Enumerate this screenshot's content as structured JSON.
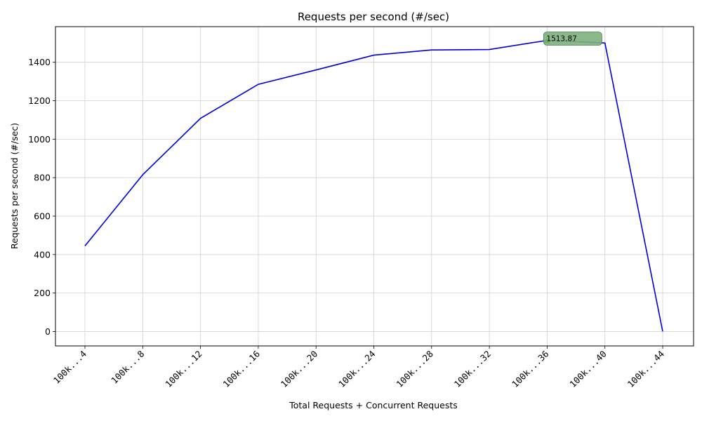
{
  "chart_data": {
    "type": "line",
    "title": "Requests per second (#/sec)",
    "xlabel": "Total Requests + Concurrent Requests",
    "ylabel": "Requests per second (#/sec)",
    "categories": [
      "100k...4",
      "100k...8",
      "100k...12",
      "100k...16",
      "100k...20",
      "100k...24",
      "100k...28",
      "100k...32",
      "100k...36",
      "100k...40",
      "100k...44"
    ],
    "series": [
      {
        "color": "#0000dd",
        "values": [
          445,
          815,
          1108,
          1285,
          1360,
          1437,
          1464,
          1466,
          1513.87,
          1500,
          0
        ]
      }
    ],
    "ylim": [
      -75,
      1585
    ],
    "yticks": [
      0,
      200,
      400,
      600,
      800,
      1000,
      1200,
      1400
    ],
    "grid": true,
    "annotation": {
      "category_index": 8,
      "value": 1513.87,
      "text": "1513.87",
      "marker_color": "#008000",
      "box_color": "#7db07d"
    }
  }
}
